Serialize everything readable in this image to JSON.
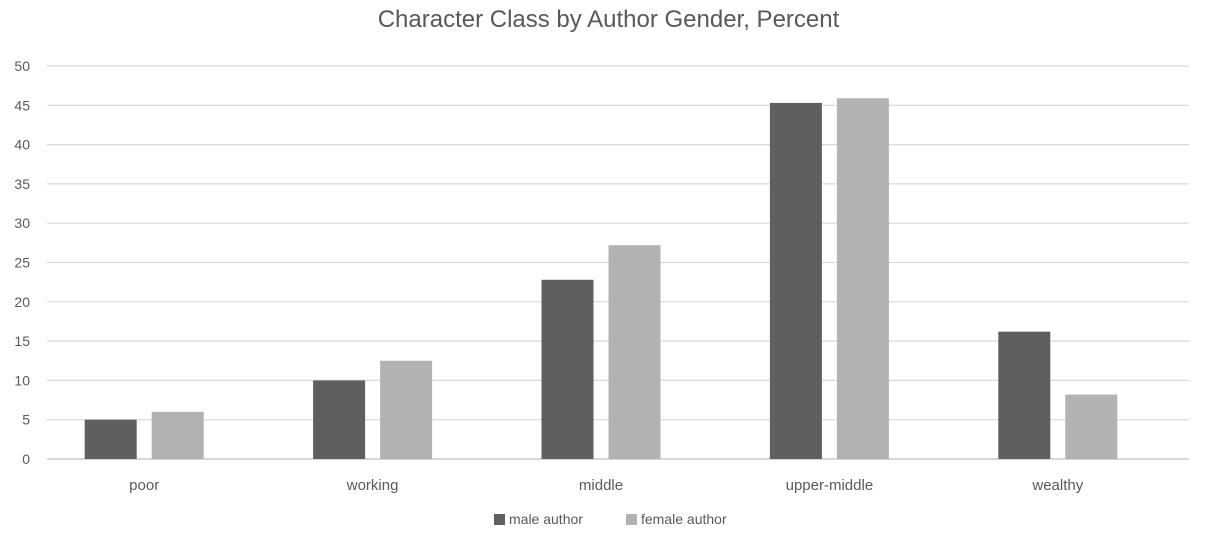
{
  "chart_data": {
    "type": "bar",
    "title": "Character Class by Author Gender, Percent",
    "xlabel": "",
    "ylabel": "",
    "categories": [
      "poor",
      "working",
      "middle",
      "upper-middle",
      "wealthy"
    ],
    "series": [
      {
        "name": "male author",
        "values": [
          5,
          10,
          22.8,
          45.3,
          16.2
        ],
        "color": "#5f5f5f"
      },
      {
        "name": "female author",
        "values": [
          6,
          12.5,
          27.2,
          45.9,
          8.2
        ],
        "color": "#b2b2b2"
      }
    ],
    "ylim": [
      0,
      50
    ],
    "yticks": [
      0,
      5,
      10,
      15,
      20,
      25,
      30,
      35,
      40,
      45,
      50
    ],
    "grid": true,
    "legend_position": "bottom"
  }
}
